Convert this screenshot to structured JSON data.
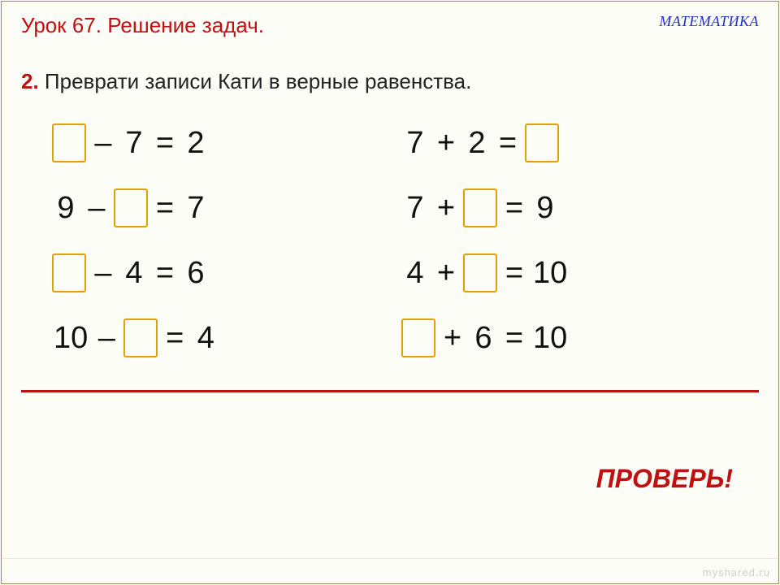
{
  "header": {
    "lesson_title": "Урок 67. Решение задач.",
    "subject": "МАТЕМАТИКА"
  },
  "task": {
    "number": "2.",
    "text": "Преврати записи Кати в верные равенства."
  },
  "columns": {
    "left": [
      [
        {
          "t": "blank"
        },
        {
          "t": "txt",
          "v": "–"
        },
        {
          "t": "txt",
          "v": "7"
        },
        {
          "t": "txt",
          "v": "="
        },
        {
          "t": "txt",
          "v": "2"
        }
      ],
      [
        {
          "t": "txt",
          "v": "9"
        },
        {
          "t": "txt",
          "v": "–"
        },
        {
          "t": "blank"
        },
        {
          "t": "txt",
          "v": "="
        },
        {
          "t": "txt",
          "v": "7"
        }
      ],
      [
        {
          "t": "blank"
        },
        {
          "t": "txt",
          "v": "–"
        },
        {
          "t": "txt",
          "v": "4"
        },
        {
          "t": "txt",
          "v": "="
        },
        {
          "t": "txt",
          "v": "6"
        }
      ],
      [
        {
          "t": "txt",
          "v": "10"
        },
        {
          "t": "txt",
          "v": "–"
        },
        {
          "t": "blank"
        },
        {
          "t": "txt",
          "v": "="
        },
        {
          "t": "txt",
          "v": "4"
        }
      ]
    ],
    "right": [
      [
        {
          "t": "txt",
          "v": "7"
        },
        {
          "t": "txt",
          "v": "+"
        },
        {
          "t": "txt",
          "v": "2"
        },
        {
          "t": "txt",
          "v": "="
        },
        {
          "t": "blank"
        }
      ],
      [
        {
          "t": "txt",
          "v": "7"
        },
        {
          "t": "txt",
          "v": "+"
        },
        {
          "t": "blank"
        },
        {
          "t": "txt",
          "v": "="
        },
        {
          "t": "txt",
          "v": "9"
        }
      ],
      [
        {
          "t": "txt",
          "v": "4"
        },
        {
          "t": "txt",
          "v": "+"
        },
        {
          "t": "blank"
        },
        {
          "t": "txt",
          "v": "="
        },
        {
          "t": "txt",
          "v": "10"
        }
      ],
      [
        {
          "t": "blank"
        },
        {
          "t": "txt",
          "v": "+"
        },
        {
          "t": "txt",
          "v": "6"
        },
        {
          "t": "txt",
          "v": "="
        },
        {
          "t": "txt",
          "v": "10"
        }
      ]
    ]
  },
  "check_label": "ПРОВЕРЬ!",
  "watermark": "myshared.ru",
  "colors": {
    "accent_red": "#c01010",
    "accent_blue": "#2030c0",
    "blank_border": "#e3a000",
    "text": "#111111",
    "background": "#fdfdf8",
    "outer_border": "#998866"
  },
  "fonts": {
    "body_family": "Arial",
    "subject_family": "Times New Roman",
    "lesson_title_size_pt": 20,
    "subject_size_pt": 14,
    "task_size_pt": 20,
    "equation_size_pt": 28,
    "check_size_pt": 24
  }
}
